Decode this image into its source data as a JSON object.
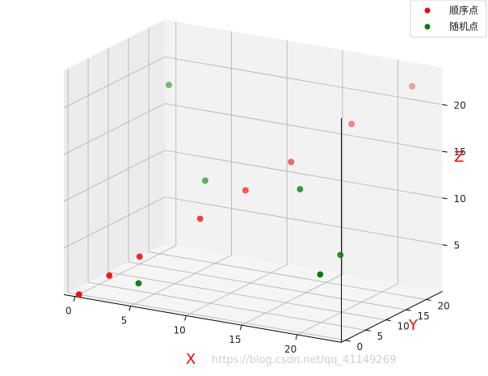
{
  "chart_data": {
    "type": "scatter",
    "projection": "3d",
    "grid": true,
    "legend_placement": "top-right",
    "xlabel": "X",
    "ylabel": "Y",
    "zlabel": "Z",
    "axis_label_color": "#ff0000",
    "xlim": [
      -1,
      24
    ],
    "ylim": [
      -1,
      24
    ],
    "zlim": [
      0,
      24
    ],
    "x_ticks": [
      0,
      5,
      10,
      15,
      20
    ],
    "y_ticks": [
      0,
      5,
      10,
      15,
      20
    ],
    "z_ticks": [
      5,
      10,
      15,
      20
    ],
    "series": [
      {
        "name": "顺序点",
        "color": "#ff0000",
        "points": [
          {
            "x": 0,
            "y": 0,
            "z": 0
          },
          {
            "x": 2,
            "y": 2,
            "z": 2
          },
          {
            "x": 4,
            "y": 4,
            "z": 4
          },
          {
            "x": 8,
            "y": 8,
            "z": 8
          },
          {
            "x": 11,
            "y": 11,
            "z": 11
          },
          {
            "x": 14,
            "y": 14,
            "z": 14
          },
          {
            "x": 18,
            "y": 18,
            "z": 18
          },
          {
            "x": 22,
            "y": 22,
            "z": 22
          }
        ]
      },
      {
        "name": "随机点",
        "color": "#008000",
        "points": [
          {
            "x": 3,
            "y": 14,
            "z": 20
          },
          {
            "x": 5,
            "y": 1,
            "z": 2
          },
          {
            "x": 7,
            "y": 12,
            "z": 11
          },
          {
            "x": 17,
            "y": 8,
            "z": 13
          },
          {
            "x": 21,
            "y": 2,
            "z": 6
          },
          {
            "x": 21,
            "y": 7,
            "z": 7
          }
        ]
      }
    ]
  },
  "watermark": "https://blog.csdn.net/qq_41149269"
}
